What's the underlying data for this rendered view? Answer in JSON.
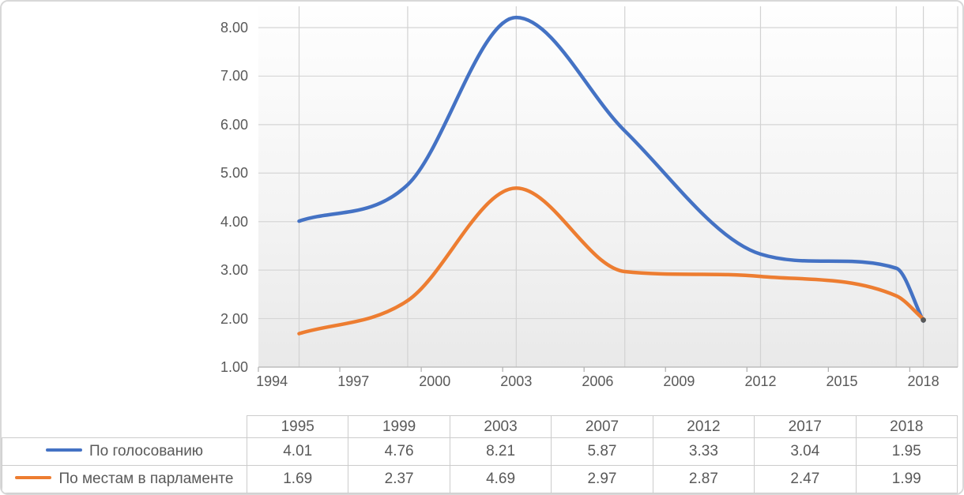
{
  "chart_data": {
    "type": "line",
    "title": "",
    "smooth": true,
    "x": [
      1995,
      1999,
      2003,
      2007,
      2012,
      2017,
      2018
    ],
    "series": [
      {
        "name": "По голосованию",
        "color": "#4472C4",
        "values": [
          4.01,
          4.76,
          8.21,
          5.87,
          3.33,
          3.04,
          1.95
        ]
      },
      {
        "name": "По местам в парламенте",
        "color": "#ED7D31",
        "values": [
          1.69,
          2.37,
          4.69,
          2.97,
          2.87,
          2.47,
          1.99
        ]
      }
    ],
    "x_axis": {
      "type": "category-years",
      "range": [
        1994,
        2019
      ],
      "tick_labels": [
        "1994",
        "1997",
        "2000",
        "2003",
        "2006",
        "2009",
        "2012",
        "2015",
        "2018"
      ]
    },
    "y_axis": {
      "min": 1.0,
      "max": 8.45,
      "tick_labels": [
        "1.00",
        "2.00",
        "3.00",
        "4.00",
        "5.00",
        "6.00",
        "7.00",
        "8.00"
      ]
    },
    "grid": true,
    "vertical_gridlines_at_years": [
      1995,
      1999,
      2003,
      2007,
      2012,
      2017,
      2018
    ],
    "legend_position": "table-left",
    "end_marker_color": "#595959"
  },
  "table": {
    "columns": [
      "1995",
      "1999",
      "2003",
      "2007",
      "2012",
      "2017",
      "2018"
    ],
    "rows": [
      {
        "label": "По голосованию",
        "swatch_color": "#4472C4",
        "values": [
          "4.01",
          "4.76",
          "8.21",
          "5.87",
          "3.33",
          "3.04",
          "1.95"
        ]
      },
      {
        "label": "По местам в парламенте",
        "swatch_color": "#ED7D31",
        "values": [
          "1.69",
          "2.37",
          "4.69",
          "2.97",
          "2.87",
          "2.47",
          "1.99"
        ]
      }
    ]
  },
  "colors": {
    "series1": "#4472C4",
    "series2": "#ED7D31",
    "axis_text": "#595959",
    "gridline_h": "#d6d6d6",
    "gridline_v": "#d2d2d2",
    "axis_line": "#b3b3b3",
    "table_border": "#cccccc",
    "card_border": "#d8d8d8"
  }
}
